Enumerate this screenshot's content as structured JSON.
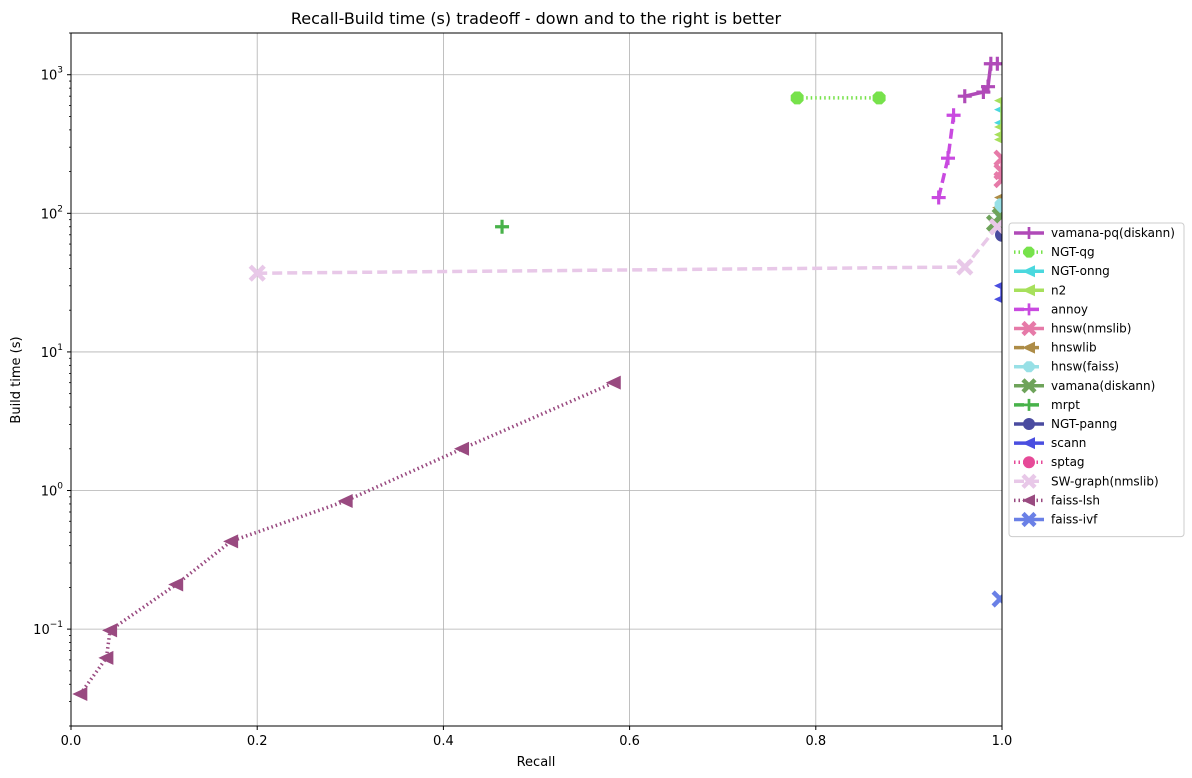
{
  "chart_data": {
    "type": "line",
    "title": "Recall-Build time (s) tradeoff - down and to the right is better",
    "xlabel": "Recall",
    "ylabel": "Build time (s)",
    "xlim": [
      0.0,
      1.0
    ],
    "ylim": [
      0.02,
      2000
    ],
    "yscale": "log",
    "grid": true,
    "legend_position": "right",
    "x_ticks": [
      0.0,
      0.2,
      0.4,
      0.6,
      0.8,
      1.0
    ],
    "x_tick_labels": [
      "0.0",
      "0.2",
      "0.4",
      "0.6",
      "0.8",
      "1.0"
    ],
    "y_ticks": [
      0.1,
      1,
      10,
      100,
      1000
    ],
    "y_tick_labels": [
      [
        "10",
        "−1"
      ],
      [
        "10",
        "0"
      ],
      [
        "10",
        "1"
      ],
      [
        "10",
        "2"
      ],
      [
        "10",
        "3"
      ]
    ],
    "series": [
      {
        "name": "vamana-pq(diskann)",
        "color": "#b04ab8",
        "dash": "solid",
        "marker": "plus",
        "points": [
          [
            0.96,
            700
          ],
          [
            0.98,
            750
          ],
          [
            0.985,
            820
          ],
          [
            0.988,
            1200
          ],
          [
            0.995,
            1200
          ]
        ]
      },
      {
        "name": "NGT-qg",
        "color": "#77e24b",
        "dash": "dotted",
        "marker": "octagon",
        "points": [
          [
            0.78,
            680
          ],
          [
            0.868,
            680
          ]
        ]
      },
      {
        "name": "NGT-onng",
        "color": "#4ad8de",
        "dash": "solid",
        "marker": "triangle-left",
        "points": [
          [
            1.0,
            560
          ],
          [
            1.0,
            450
          ]
        ]
      },
      {
        "name": "n2",
        "color": "#a7e05c",
        "dash": "solid",
        "marker": "triangle-left",
        "points": [
          [
            1.0,
            650
          ],
          [
            1.0,
            420
          ],
          [
            1.0,
            370
          ],
          [
            1.0,
            340
          ]
        ]
      },
      {
        "name": "annoy",
        "color": "#c94ae0",
        "dash": "dashed",
        "marker": "plus",
        "points": [
          [
            0.932,
            130
          ],
          [
            0.942,
            250
          ],
          [
            0.948,
            510
          ]
        ]
      },
      {
        "name": "hnsw(nmslib)",
        "color": "#e67aa8",
        "dash": "solid",
        "marker": "x",
        "points": [
          [
            1.0,
            250
          ],
          [
            1.0,
            200
          ],
          [
            1.0,
            175
          ]
        ]
      },
      {
        "name": "hnswlib",
        "color": "#ad8c47",
        "dash": "dashed",
        "marker": "triangle-left",
        "points": [
          [
            1.0,
            130
          ],
          [
            0.998,
            110
          ]
        ]
      },
      {
        "name": "hnsw(faiss)",
        "color": "#98e0e6",
        "dash": "dashed",
        "marker": "octagon",
        "points": [
          [
            0.999,
            115
          ],
          [
            1.0,
            100
          ]
        ]
      },
      {
        "name": "vamana(diskann)",
        "color": "#6ea35a",
        "dash": "solid",
        "marker": "x",
        "points": [
          [
            0.992,
            85
          ],
          [
            0.998,
            95
          ]
        ]
      },
      {
        "name": "mrpt",
        "color": "#48b24a",
        "dash": "dashed",
        "marker": "plus",
        "points": [
          [
            0.463,
            80
          ]
        ]
      },
      {
        "name": "NGT-panng",
        "color": "#4a4ba0",
        "dash": "solid",
        "marker": "circle",
        "points": [
          [
            1.0,
            70
          ]
        ]
      },
      {
        "name": "scann",
        "color": "#4a4ee0",
        "dash": "solid",
        "marker": "triangle-left",
        "points": [
          [
            1.0,
            30
          ],
          [
            1.0,
            24
          ]
        ]
      },
      {
        "name": "sptag",
        "color": "#e64a98",
        "dash": "dotted",
        "marker": "circle",
        "points": []
      },
      {
        "name": "SW-graph(nmslib)",
        "color": "#e8c8e8",
        "dash": "dashed",
        "marker": "x",
        "points": [
          [
            0.2,
            37
          ],
          [
            0.96,
            41
          ],
          [
            0.995,
            80
          ]
        ]
      },
      {
        "name": "faiss-lsh",
        "color": "#994a80",
        "dash": "dotted",
        "marker": "triangle-left",
        "points": [
          [
            0.01,
            0.034
          ],
          [
            0.038,
            0.062
          ],
          [
            0.042,
            0.098
          ],
          [
            0.113,
            0.21
          ],
          [
            0.172,
            0.43
          ],
          [
            0.295,
            0.84
          ],
          [
            0.42,
            2.0
          ],
          [
            0.583,
            6.0
          ]
        ]
      },
      {
        "name": "faiss-ivf",
        "color": "#6a80e6",
        "dash": "solid",
        "marker": "x",
        "points": [
          [
            0.998,
            0.165
          ]
        ]
      }
    ]
  }
}
